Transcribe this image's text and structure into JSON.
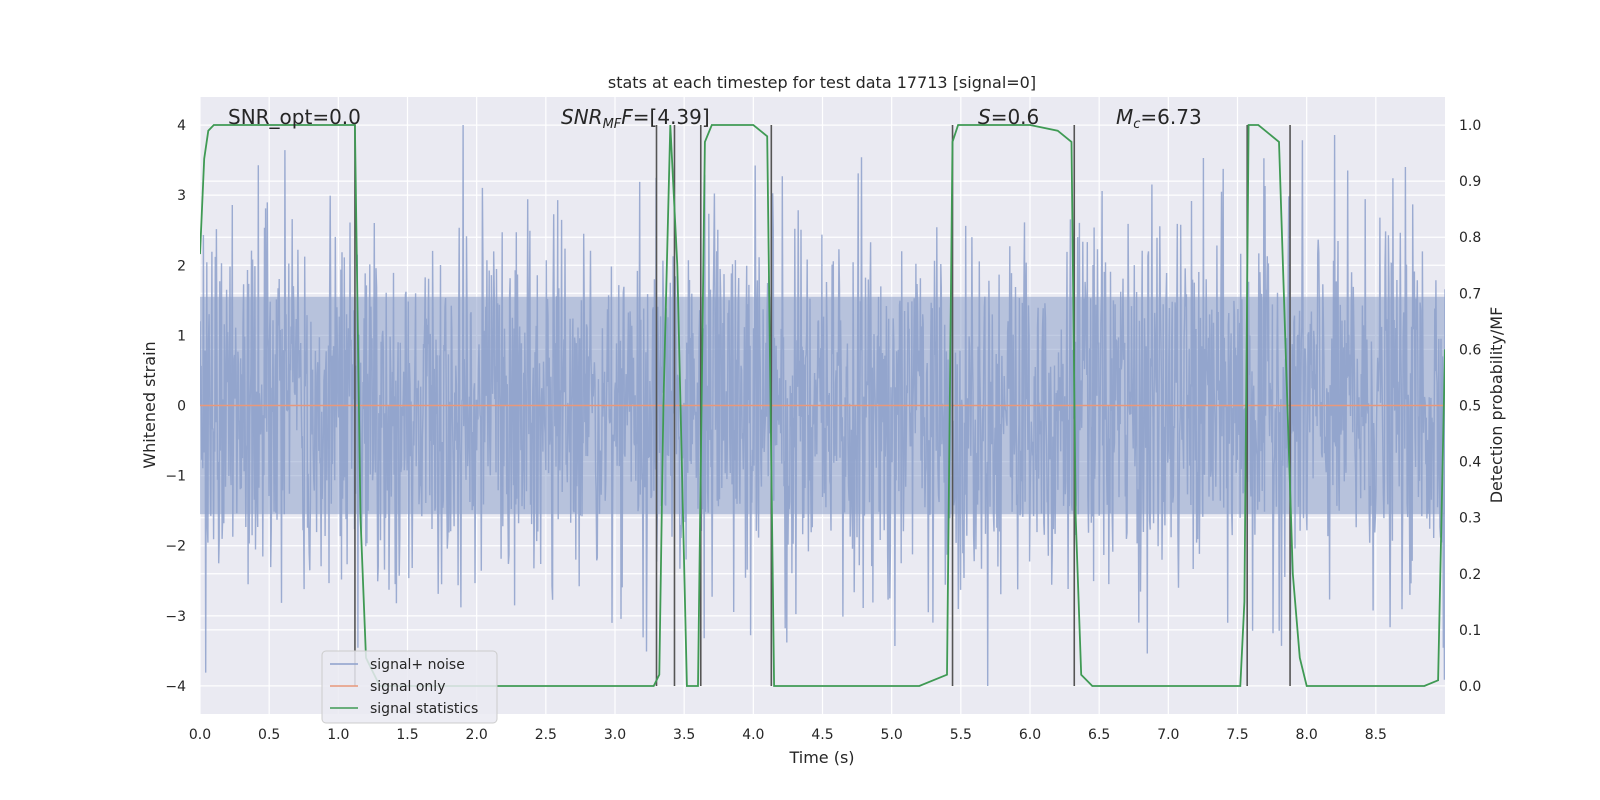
{
  "chart_data": {
    "type": "line",
    "title": "stats at each timestep for test data 17713 [signal=0]",
    "xlabel": "Time (s)",
    "ylabel": "Whitened strain",
    "ylabel_right": "Detection probability/MF",
    "xlim": [
      0,
      9
    ],
    "ylim": [
      -4.4,
      4.4
    ],
    "ylim_right": [
      -0.05,
      1.05
    ],
    "x_ticks": [
      "0.0",
      "0.5",
      "1.0",
      "1.5",
      "2.0",
      "2.5",
      "3.0",
      "3.5",
      "4.0",
      "4.5",
      "5.0",
      "5.5",
      "6.0",
      "6.5",
      "7.0",
      "7.5",
      "8.0",
      "8.5"
    ],
    "y_ticks": [
      "4",
      "3",
      "2",
      "1",
      "0",
      "−1",
      "−2",
      "−3",
      "−4"
    ],
    "y_ticks_right": [
      "1.0",
      "0.9",
      "0.8",
      "0.7",
      "0.6",
      "0.5",
      "0.4",
      "0.3",
      "0.2",
      "0.1",
      "0.0"
    ],
    "grid": true,
    "legend_position": "lower-left",
    "annotations": {
      "snr_opt": "SNR_opt=0.0",
      "snr_mf_main": "SNR",
      "snr_mf_sub": "MF",
      "snr_mf_value": "=[4.39]",
      "s_main": "S",
      "s_value": "=0.6",
      "mc_main": "M",
      "mc_sub": "c",
      "mc_value": "=6.73"
    },
    "series": [
      {
        "name": "signal+ noise",
        "color": "#8da0cb",
        "style": "noise band, approx range -4 to 4",
        "amplitude_range": [
          -4.0,
          4.0
        ]
      },
      {
        "name": "signal only",
        "color": "#e8987b",
        "x": [
          0,
          9
        ],
        "y": [
          0,
          0
        ]
      },
      {
        "name": "signal statistics",
        "color": "#3f9a54",
        "axis": "right",
        "x": [
          0.0,
          0.03,
          0.06,
          0.1,
          0.2,
          0.5,
          0.8,
          1.0,
          1.12,
          1.16,
          1.2,
          1.3,
          1.5,
          2.0,
          2.5,
          3.0,
          3.28,
          3.32,
          3.35,
          3.4,
          3.45,
          3.52,
          3.56,
          3.6,
          3.65,
          3.7,
          3.75,
          4.0,
          4.1,
          4.15,
          4.2,
          4.3,
          4.5,
          4.6,
          5.0,
          5.2,
          5.4,
          5.44,
          5.48,
          5.52,
          5.6,
          6.0,
          6.2,
          6.3,
          6.33,
          6.37,
          6.45,
          6.5,
          6.8,
          7.0,
          7.2,
          7.4,
          7.52,
          7.55,
          7.58,
          7.65,
          7.8,
          7.9,
          7.95,
          8.0,
          8.5,
          8.8,
          8.85,
          8.95,
          9.0
        ],
        "y": [
          0.77,
          0.94,
          0.99,
          1.0,
          1.0,
          1.0,
          1.0,
          1.0,
          1.0,
          0.3,
          0.05,
          0.0,
          0.0,
          0.0,
          0.0,
          0.0,
          0.0,
          0.02,
          0.5,
          1.0,
          0.75,
          0.0,
          0.0,
          0.0,
          0.97,
          1.0,
          1.0,
          1.0,
          0.98,
          0.0,
          0.0,
          0.0,
          0.0,
          0.0,
          0.0,
          0.0,
          0.02,
          0.97,
          1.0,
          1.0,
          1.0,
          1.0,
          0.99,
          0.97,
          0.3,
          0.02,
          0.0,
          0.0,
          0.0,
          0.0,
          0.0,
          0.0,
          0.0,
          0.15,
          1.0,
          1.0,
          0.97,
          0.2,
          0.05,
          0.0,
          0.0,
          0.0,
          0.0,
          0.01,
          0.6
        ]
      }
    ],
    "vertical_lines": [
      1.12,
      3.3,
      3.43,
      3.62,
      4.13,
      5.44,
      6.32,
      7.57,
      7.88
    ],
    "colors": {
      "axes_bg": "#eaeaf2",
      "grid": "#ffffff",
      "text": "#262626",
      "vline": "#555555"
    }
  }
}
